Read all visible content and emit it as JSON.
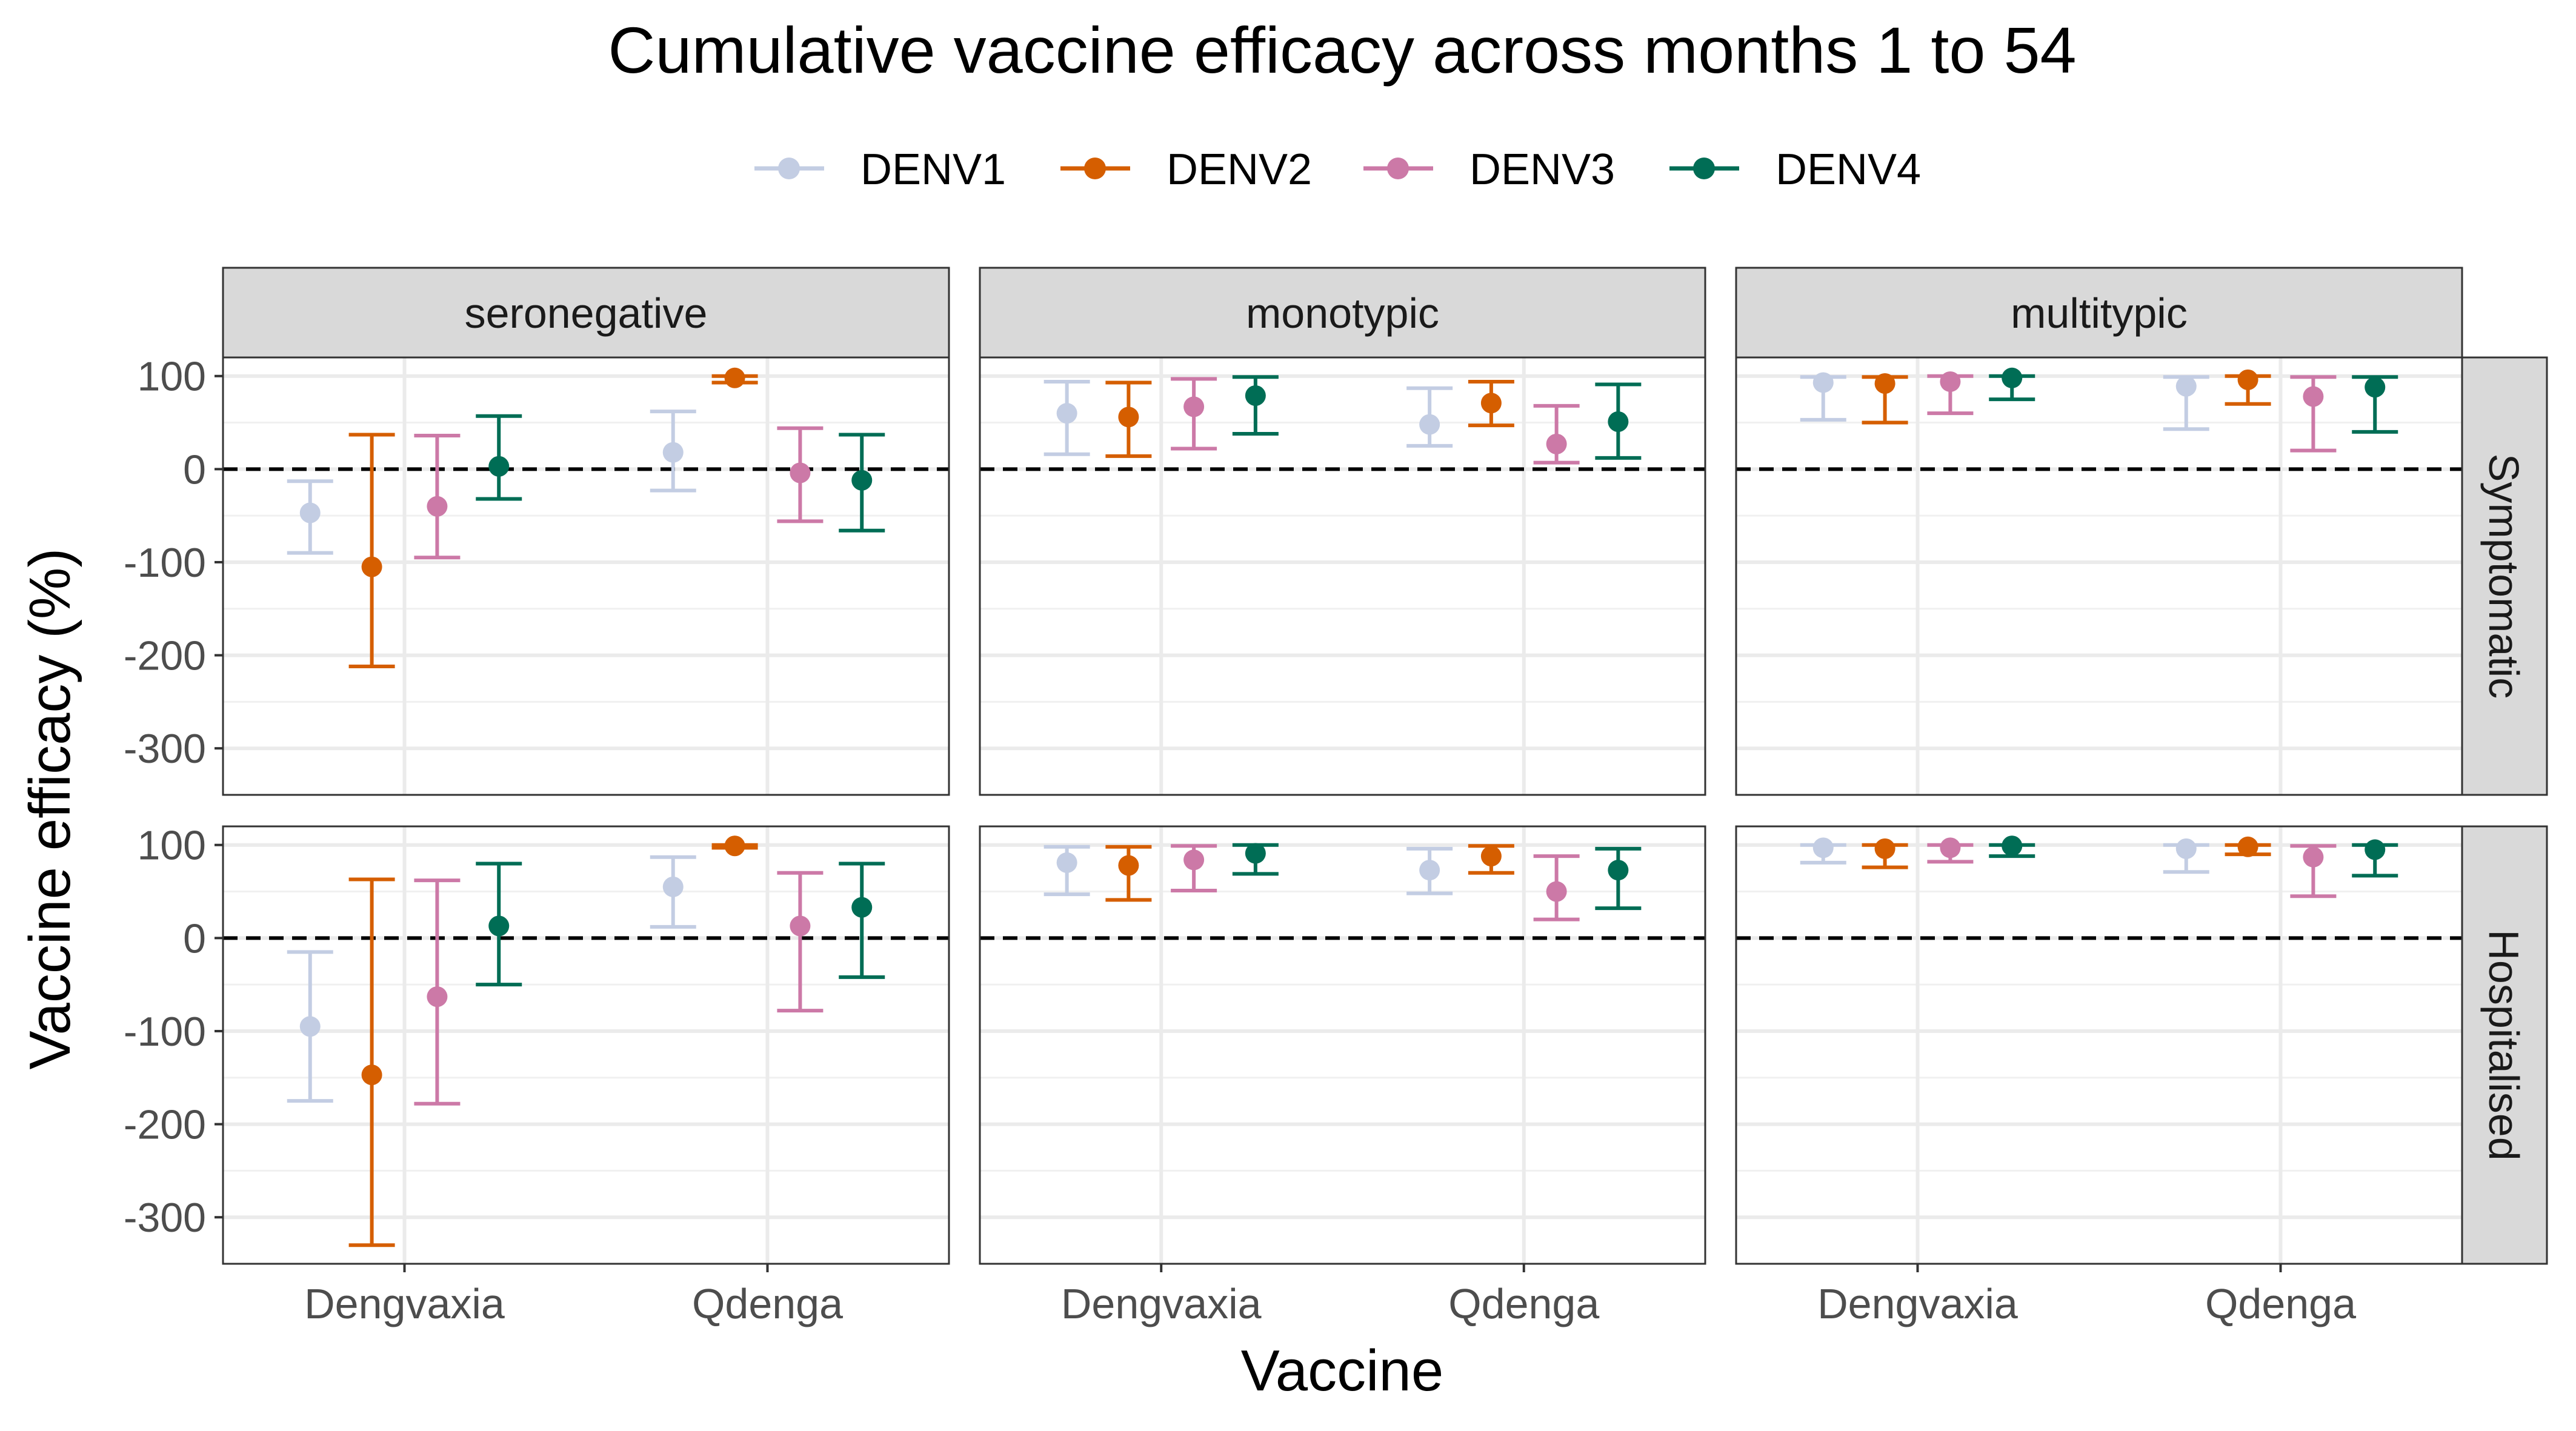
{
  "chart_data": {
    "type": "scatter",
    "subtype": "point-range faceted",
    "title": "Cumulative vaccine efficacy across months 1 to 54",
    "xlabel": "Vaccine",
    "ylabel": "Vaccine efficacy (%)",
    "categories": [
      "Dengvaxia",
      "Qdenga"
    ],
    "ylim": [
      -350,
      120
    ],
    "yticks": [
      100,
      0,
      -100,
      -200,
      -300
    ],
    "reference_line": 0,
    "legend_position": "top",
    "columns": [
      "seronegative",
      "monotypic",
      "multitypic"
    ],
    "rows": [
      "Symptomatic",
      "Hospitalised"
    ],
    "series": [
      {
        "name": "DENV1",
        "color": "#C3CDE3"
      },
      {
        "name": "DENV2",
        "color": "#D55E00"
      },
      {
        "name": "DENV3",
        "color": "#CC79A7"
      },
      {
        "name": "DENV4",
        "color": "#006D55"
      }
    ],
    "panels": [
      {
        "row": "Symptomatic",
        "column": "seronegative",
        "data": {
          "Dengvaxia": [
            [
              -47,
              -90,
              -13
            ],
            [
              -105,
              -212,
              37
            ],
            [
              -40,
              -95,
              36
            ],
            [
              3,
              -32,
              57
            ]
          ],
          "Qdenga": [
            [
              18,
              -23,
              62
            ],
            [
              98,
              93,
              100
            ],
            [
              -4,
              -56,
              44
            ],
            [
              -12,
              -66,
              37
            ]
          ]
        }
      },
      {
        "row": "Symptomatic",
        "column": "monotypic",
        "data": {
          "Dengvaxia": [
            [
              60,
              16,
              94
            ],
            [
              56,
              14,
              93
            ],
            [
              67,
              22,
              97
            ],
            [
              79,
              38,
              99
            ]
          ],
          "Qdenga": [
            [
              48,
              25,
              87
            ],
            [
              71,
              47,
              94
            ],
            [
              27,
              7,
              68
            ],
            [
              51,
              12,
              91
            ]
          ]
        }
      },
      {
        "row": "Symptomatic",
        "column": "multitypic",
        "data": {
          "Dengvaxia": [
            [
              93,
              53,
              99
            ],
            [
              92,
              50,
              99
            ],
            [
              94,
              60,
              100
            ],
            [
              98,
              75,
              100
            ]
          ],
          "Qdenga": [
            [
              89,
              43,
              99
            ],
            [
              96,
              70,
              100
            ],
            [
              78,
              20,
              99
            ],
            [
              88,
              40,
              99
            ]
          ]
        }
      },
      {
        "row": "Hospitalised",
        "column": "seronegative",
        "data": {
          "Dengvaxia": [
            [
              -95,
              -175,
              -15
            ],
            [
              -147,
              -330,
              63
            ],
            [
              -63,
              -178,
              62
            ],
            [
              13,
              -50,
              80
            ]
          ],
          "Qdenga": [
            [
              55,
              12,
              87
            ],
            [
              99,
              97,
              100
            ],
            [
              13,
              -78,
              70
            ],
            [
              33,
              -42,
              80
            ]
          ]
        }
      },
      {
        "row": "Hospitalised",
        "column": "monotypic",
        "data": {
          "Dengvaxia": [
            [
              81,
              47,
              98
            ],
            [
              78,
              41,
              98
            ],
            [
              84,
              51,
              99
            ],
            [
              91,
              69,
              100
            ]
          ],
          "Qdenga": [
            [
              73,
              48,
              96
            ],
            [
              88,
              70,
              99
            ],
            [
              50,
              20,
              88
            ],
            [
              73,
              32,
              96
            ]
          ]
        }
      },
      {
        "row": "Hospitalised",
        "column": "multitypic",
        "data": {
          "Dengvaxia": [
            [
              97,
              81,
              100
            ],
            [
              96,
              76,
              100
            ],
            [
              97,
              82,
              100
            ],
            [
              99,
              88,
              100
            ]
          ],
          "Qdenga": [
            [
              96,
              71,
              100
            ],
            [
              98,
              90,
              100
            ],
            [
              87,
              45,
              99
            ],
            [
              95,
              67,
              100
            ]
          ]
        }
      }
    ]
  }
}
